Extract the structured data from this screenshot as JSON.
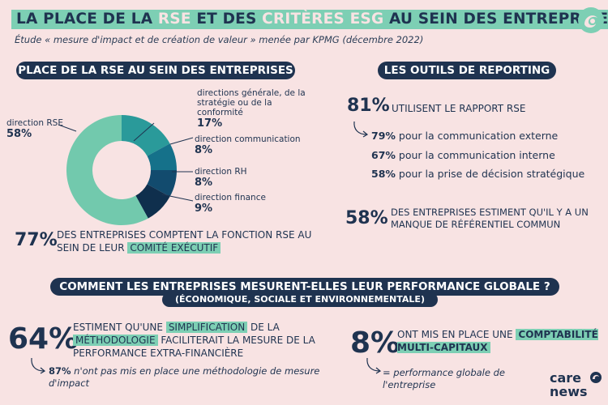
{
  "header": {
    "title_part1": "LA PLACE DE LA ",
    "title_rse": "RSE",
    "title_part2": " ET DES ",
    "title_criteres": "CRITÈRES ESG",
    "title_part3": " AU SEIN DES ENTREPRISES",
    "subtitle": "Étude « mesure d'impact et de création de valeur » menée par KPMG (décembre 2022)"
  },
  "rse_section": {
    "heading": "PLACE DE LA RSE AU SEIN DES ENTREPRISES",
    "labels": {
      "rse_name": "direction RSE",
      "rse_value": "58%",
      "gen_name": "directions générale, de la stratégie ou de la conformité",
      "gen_value": "17%",
      "comm_name": "direction communication",
      "comm_value": "8%",
      "rh_name": "direction RH",
      "rh_value": "8%",
      "fin_name": "direction finance",
      "fin_value": "9%"
    },
    "stat_value": "77%",
    "stat_text1": "DES ENTREPRISES COMPTENT LA FONCTION RSE AU SEIN DE LEUR ",
    "stat_highlight": "COMITÉ EXÉCUTIF"
  },
  "chart_data": {
    "type": "pie",
    "title": "Place de la RSE au sein des entreprises",
    "categories": [
      "direction RSE",
      "directions générale, de la stratégie ou de la conformité",
      "direction communication",
      "direction RH",
      "direction finance"
    ],
    "values": [
      58,
      17,
      8,
      8,
      9
    ],
    "colors": [
      "#72c9ad",
      "#2a9a9a",
      "#15718a",
      "#124b6e",
      "#0f2f4d"
    ]
  },
  "outils_section": {
    "heading": "LES OUTILS DE REPORTING",
    "stat81_value": "81%",
    "stat81_text": "UTILISENT LE RAPPORT RSE",
    "sub1_value": "79%",
    "sub1_text": " pour la communication externe",
    "sub2_value": "67%",
    "sub2_text": " pour la communication interne",
    "sub3_value": "58%",
    "sub3_text": " pour la prise de décision stratégique",
    "stat58_value": "58%",
    "stat58_text": "DES ENTREPRISES ESTIMENT QU'IL Y A UN MANQUE DE RÉFÉRENTIEL COMMUN"
  },
  "perf_section": {
    "heading": "COMMENT LES ENTREPRISES MESURENT-ELLES LEUR PERFORMANCE GLOBALE ?",
    "subheading": "(ÉCONOMIQUE, SOCIALE ET ENVIRONNEMENTALE)",
    "stat64_value": "64%",
    "stat64_t1": "ESTIMENT QU'UNE ",
    "stat64_h1": "SIMPLIFICATION",
    "stat64_t2": " DE LA ",
    "stat64_h2": "MÉTHODOLOGIE",
    "stat64_t3": " FACILITERAIT LA MESURE DE LA PERFORMANCE EXTRA-FINANCIÈRE",
    "stat87_value": "87%",
    "stat87_text": " n'ont pas mis en place une méthodologie de mesure d'impact",
    "stat8_value": "8%",
    "stat8_text": "ONT MIS EN PLACE UNE ",
    "stat8_highlight": "COMPTABILITÉ MULTI-CAPITAUX",
    "stat8_note": "= performance globale de l'entreprise"
  },
  "brand": {
    "line1": "care",
    "line2": "news"
  },
  "colors": {
    "background": "#f8e3e3",
    "navy": "#1f3350",
    "accent": "#7dcfb4"
  }
}
